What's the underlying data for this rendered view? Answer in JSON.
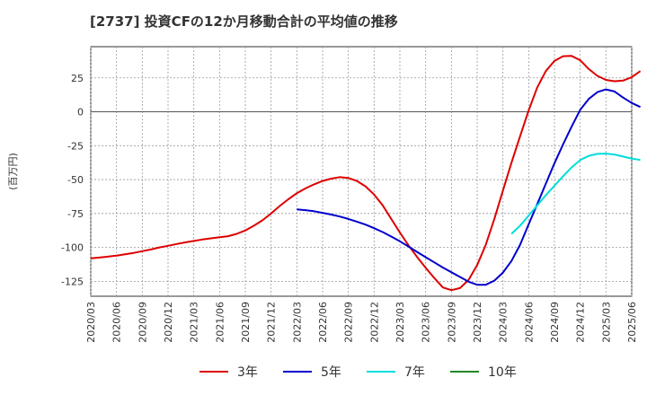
{
  "title": "[2737]  投資CFの12か月移動合計の平均値の推移",
  "chart_data": {
    "type": "line",
    "title": "[2737]  投資CFの12か月移動合計の平均値の推移",
    "ylabel": "(百万円)",
    "xlabel": "",
    "x_ticks": [
      "2020/03",
      "2020/06",
      "2020/09",
      "2020/12",
      "2021/03",
      "2021/06",
      "2021/09",
      "2021/12",
      "2022/03",
      "2022/06",
      "2022/09",
      "2022/12",
      "2023/03",
      "2023/06",
      "2023/09",
      "2023/12",
      "2024/03",
      "2024/06",
      "2024/09",
      "2024/12",
      "2025/03",
      "2025/06"
    ],
    "y_ticks": [
      25,
      0,
      -25,
      -50,
      -75,
      -100,
      -125
    ],
    "ylim": [
      -136,
      48
    ],
    "grid": true,
    "legend_position": "bottom",
    "series": [
      {
        "name": "3年",
        "color": "#dd0000",
        "points": [
          [
            "2020/03",
            -108
          ],
          [
            "2020/04",
            -107.5
          ],
          [
            "2020/05",
            -106.8
          ],
          [
            "2020/06",
            -106
          ],
          [
            "2020/07",
            -105
          ],
          [
            "2020/08",
            -104
          ],
          [
            "2020/09",
            -102.8
          ],
          [
            "2020/10",
            -101.5
          ],
          [
            "2020/11",
            -100
          ],
          [
            "2020/12",
            -98.8
          ],
          [
            "2021/01",
            -97.5
          ],
          [
            "2021/02",
            -96.3
          ],
          [
            "2021/03",
            -95.2
          ],
          [
            "2021/04",
            -94.2
          ],
          [
            "2021/05",
            -93.3
          ],
          [
            "2021/06",
            -92.5
          ],
          [
            "2021/07",
            -91.7
          ],
          [
            "2021/08",
            -90
          ],
          [
            "2021/09",
            -87.5
          ],
          [
            "2021/10",
            -84
          ],
          [
            "2021/11",
            -80
          ],
          [
            "2021/12",
            -75
          ],
          [
            "2022/01",
            -69.5
          ],
          [
            "2022/02",
            -64.5
          ],
          [
            "2022/03",
            -60
          ],
          [
            "2022/04",
            -56.5
          ],
          [
            "2022/05",
            -53.5
          ],
          [
            "2022/06",
            -51
          ],
          [
            "2022/07",
            -49.3
          ],
          [
            "2022/08",
            -48.2
          ],
          [
            "2022/09",
            -48.8
          ],
          [
            "2022/10",
            -51
          ],
          [
            "2022/11",
            -55
          ],
          [
            "2022/12",
            -61
          ],
          [
            "2023/01",
            -69
          ],
          [
            "2023/02",
            -79
          ],
          [
            "2023/03",
            -89
          ],
          [
            "2023/04",
            -98.5
          ],
          [
            "2023/05",
            -107
          ],
          [
            "2023/06",
            -115
          ],
          [
            "2023/07",
            -122.5
          ],
          [
            "2023/08",
            -129.5
          ],
          [
            "2023/09",
            -131.5
          ],
          [
            "2023/10",
            -130
          ],
          [
            "2023/11",
            -124
          ],
          [
            "2023/12",
            -113
          ],
          [
            "2024/01",
            -98
          ],
          [
            "2024/02",
            -79
          ],
          [
            "2024/03",
            -58
          ],
          [
            "2024/04",
            -37.5
          ],
          [
            "2024/05",
            -18
          ],
          [
            "2024/06",
            1
          ],
          [
            "2024/07",
            18
          ],
          [
            "2024/08",
            30
          ],
          [
            "2024/09",
            37.5
          ],
          [
            "2024/10",
            41
          ],
          [
            "2024/11",
            41.2
          ],
          [
            "2024/12",
            38
          ],
          [
            "2025/01",
            31.5
          ],
          [
            "2025/02",
            26.5
          ],
          [
            "2025/03",
            23.5
          ],
          [
            "2025/04",
            22.5
          ],
          [
            "2025/05",
            23
          ],
          [
            "2025/06",
            25.5
          ],
          [
            "2025/07",
            30
          ]
        ]
      },
      {
        "name": "5年",
        "color": "#0000cc",
        "points": [
          [
            "2022/03",
            -72
          ],
          [
            "2022/04",
            -72.5
          ],
          [
            "2022/05",
            -73.3
          ],
          [
            "2022/06",
            -74.5
          ],
          [
            "2022/07",
            -75.8
          ],
          [
            "2022/08",
            -77.2
          ],
          [
            "2022/09",
            -79
          ],
          [
            "2022/10",
            -81
          ],
          [
            "2022/11",
            -83.2
          ],
          [
            "2022/12",
            -85.8
          ],
          [
            "2023/01",
            -88.7
          ],
          [
            "2023/02",
            -92
          ],
          [
            "2023/03",
            -95.5
          ],
          [
            "2023/04",
            -99.3
          ],
          [
            "2023/05",
            -103.3
          ],
          [
            "2023/06",
            -107.2
          ],
          [
            "2023/07",
            -111
          ],
          [
            "2023/08",
            -114.8
          ],
          [
            "2023/09",
            -118.3
          ],
          [
            "2023/10",
            -121.8
          ],
          [
            "2023/11",
            -125.3
          ],
          [
            "2023/12",
            -127.5
          ],
          [
            "2024/01",
            -127.5
          ],
          [
            "2024/02",
            -124.5
          ],
          [
            "2024/03",
            -118.5
          ],
          [
            "2024/04",
            -110
          ],
          [
            "2024/05",
            -98
          ],
          [
            "2024/06",
            -83
          ],
          [
            "2024/07",
            -68
          ],
          [
            "2024/08",
            -53
          ],
          [
            "2024/09",
            -38
          ],
          [
            "2024/10",
            -24
          ],
          [
            "2024/11",
            -11
          ],
          [
            "2024/12",
            1.5
          ],
          [
            "2025/01",
            9.5
          ],
          [
            "2025/02",
            14.5
          ],
          [
            "2025/03",
            16.5
          ],
          [
            "2025/04",
            15
          ],
          [
            "2025/05",
            10.5
          ],
          [
            "2025/06",
            6.5
          ],
          [
            "2025/07",
            3.5
          ]
        ]
      },
      {
        "name": "7年",
        "color": "#00dddd",
        "points": [
          [
            "2024/04",
            -90
          ],
          [
            "2024/05",
            -84
          ],
          [
            "2024/06",
            -76.5
          ],
          [
            "2024/07",
            -69
          ],
          [
            "2024/08",
            -61.5
          ],
          [
            "2024/09",
            -54.5
          ],
          [
            "2024/10",
            -47.5
          ],
          [
            "2024/11",
            -41
          ],
          [
            "2024/12",
            -35.5
          ],
          [
            "2025/01",
            -32.5
          ],
          [
            "2025/02",
            -31
          ],
          [
            "2025/03",
            -30.8
          ],
          [
            "2025/04",
            -31.5
          ],
          [
            "2025/05",
            -33
          ],
          [
            "2025/06",
            -34.5
          ],
          [
            "2025/07",
            -35.5
          ]
        ]
      },
      {
        "name": "10年",
        "color": "#228822",
        "points": []
      }
    ]
  }
}
